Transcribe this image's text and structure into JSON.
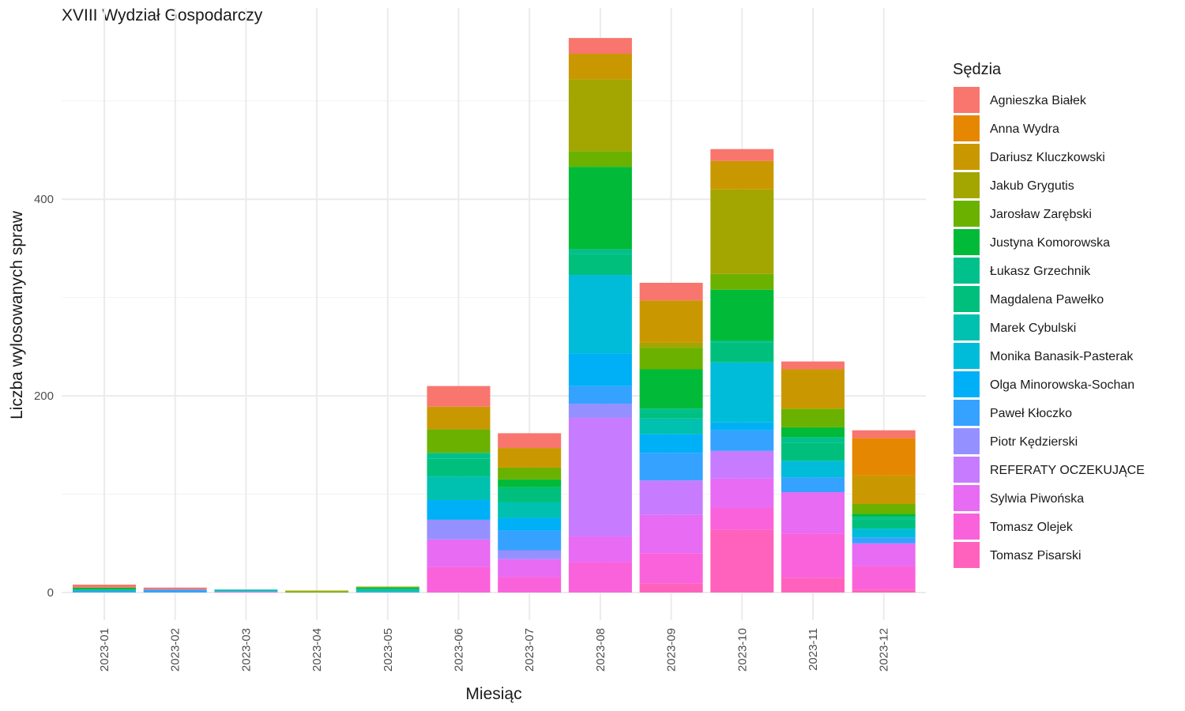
{
  "chart_data": {
    "type": "bar",
    "stacked": true,
    "title": "XVIII Wydział Gospodarczy",
    "xlabel": "Miesiąc",
    "ylabel": "Liczba wylosowanych spraw",
    "ylim": [
      -25,
      595
    ],
    "yticks": [
      0,
      200,
      400
    ],
    "grid": true,
    "legend_position": "right",
    "legend_title": "Sędzia",
    "categories": [
      "2023-01",
      "2023-02",
      "2023-03",
      "2023-04",
      "2023-05",
      "2023-06",
      "2023-07",
      "2023-08",
      "2023-09",
      "2023-10",
      "2023-11",
      "2023-12"
    ],
    "series": [
      {
        "name": "Agnieszka Białek",
        "color": "#F8766D",
        "values": [
          3,
          2,
          0,
          0,
          0,
          21,
          15,
          16,
          18,
          12,
          8,
          8
        ]
      },
      {
        "name": "Anna Wydra",
        "color": "#E58700",
        "values": [
          0,
          0,
          0,
          0,
          0,
          0,
          0,
          0,
          0,
          0,
          0,
          38
        ]
      },
      {
        "name": "Dariusz Kluczkowski",
        "color": "#C99800",
        "values": [
          0,
          0,
          0,
          0,
          0,
          23,
          20,
          26,
          43,
          29,
          40,
          29
        ]
      },
      {
        "name": "Jakub Grygutis",
        "color": "#A3A500",
        "values": [
          0,
          0,
          0,
          1,
          0,
          0,
          0,
          73,
          5,
          86,
          0,
          0
        ]
      },
      {
        "name": "Jarosław Zarębski",
        "color": "#6BB100",
        "values": [
          0,
          0,
          0,
          1,
          1,
          24,
          12,
          16,
          22,
          16,
          19,
          10
        ]
      },
      {
        "name": "Justyna Komorowska",
        "color": "#00BA38",
        "values": [
          2,
          0,
          0,
          0,
          1,
          0,
          8,
          84,
          40,
          52,
          10,
          3
        ]
      },
      {
        "name": "Łukasz Grzechnik",
        "color": "#00C08B",
        "values": [
          1,
          0,
          0,
          0,
          1,
          6,
          0,
          5,
          5,
          2,
          6,
          3
        ]
      },
      {
        "name": "Magdalena Pawełko",
        "color": "#00BF7D",
        "values": [
          0,
          0,
          0,
          0,
          1,
          18,
          15,
          21,
          5,
          20,
          18,
          9
        ]
      },
      {
        "name": "Marek Cybulski",
        "color": "#00C0AF",
        "values": [
          0,
          0,
          2,
          0,
          1,
          24,
          16,
          0,
          16,
          0,
          0,
          0
        ]
      },
      {
        "name": "Monika Banasik-Pasterak",
        "color": "#00BCD8",
        "values": [
          0,
          0,
          0,
          0,
          0,
          0,
          0,
          80,
          0,
          61,
          17,
          9
        ]
      },
      {
        "name": "Olga Minorowska-Sochan",
        "color": "#00B0F6",
        "values": [
          0,
          0,
          0,
          0,
          0,
          20,
          13,
          33,
          19,
          8,
          0,
          0
        ]
      },
      {
        "name": "Paweł Kłoczko",
        "color": "#35A2FF",
        "values": [
          2,
          3,
          0,
          0,
          1,
          0,
          20,
          18,
          28,
          21,
          15,
          6
        ]
      },
      {
        "name": "Piotr Kędzierski",
        "color": "#9590FF",
        "values": [
          0,
          0,
          0,
          0,
          0,
          20,
          9,
          14,
          0,
          0,
          0,
          0
        ]
      },
      {
        "name": "REFERATY OCZEKUJĄCE",
        "color": "#C77CFF",
        "values": [
          0,
          0,
          0,
          0,
          0,
          0,
          0,
          121,
          35,
          28,
          0,
          0
        ]
      },
      {
        "name": "Sylwia Piwońska",
        "color": "#E76BF3",
        "values": [
          0,
          0,
          1,
          0,
          0,
          28,
          18,
          26,
          39,
          30,
          42,
          23
        ]
      },
      {
        "name": "Tomasz Olejek",
        "color": "#FA62DB",
        "values": [
          0,
          0,
          0,
          0,
          0,
          26,
          16,
          31,
          31,
          22,
          45,
          24
        ]
      },
      {
        "name": "Tomasz Pisarski",
        "color": "#FF62BC",
        "values": [
          0,
          0,
          0,
          0,
          0,
          0,
          0,
          0,
          9,
          64,
          15,
          3
        ]
      }
    ]
  }
}
